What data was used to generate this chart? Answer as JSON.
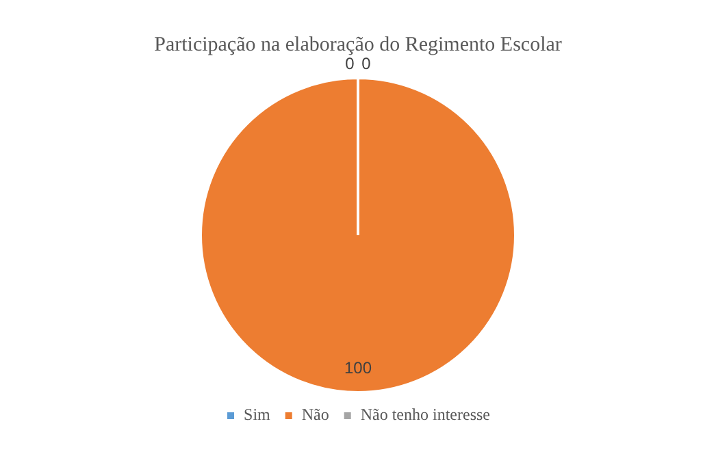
{
  "chart_data": {
    "type": "pie",
    "title": "Participação na elaboração do Regimento Escolar",
    "categories": [
      "Sim",
      "Não",
      "Não tenho interesse"
    ],
    "values": [
      0,
      100,
      0
    ],
    "colors": [
      "#5b9bd5",
      "#ed7d31",
      "#a5a5a5"
    ],
    "value_labels": [
      "0",
      "100",
      "0"
    ],
    "legend": "bottom"
  }
}
